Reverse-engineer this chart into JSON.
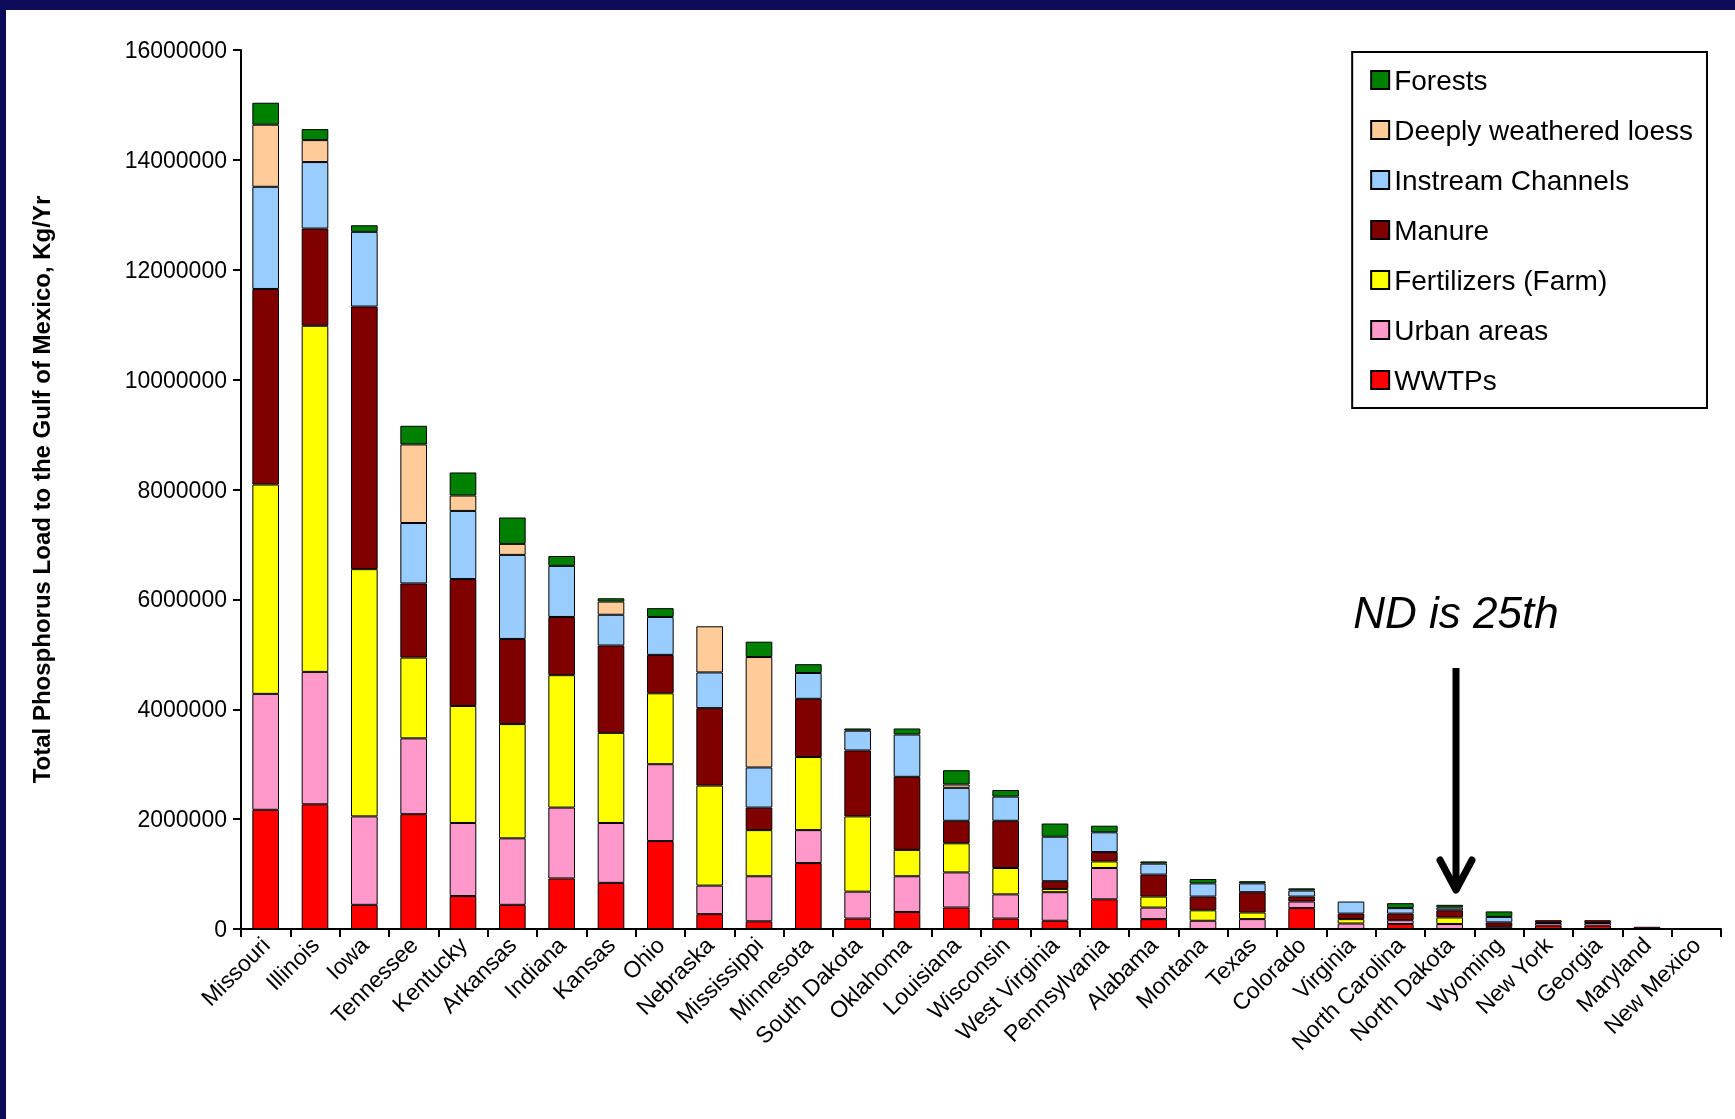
{
  "chart_data": {
    "type": "bar",
    "stacked": true,
    "ylabel": "Total Phosphorus Load to the Gulf of Mexico, Kg/Yr",
    "categories": [
      "Missouri",
      "Illinois",
      "Iowa",
      "Tennessee",
      "Kentucky",
      "Arkansas",
      "Indiana",
      "Kansas",
      "Ohio",
      "Nebraska",
      "Mississippi",
      "Minnesota",
      "South Dakota",
      "Oklahoma",
      "Louisiana",
      "Wisconsin",
      "West Virginia",
      "Pennsylvania",
      "Alabama",
      "Montana",
      "Texas",
      "Colorado",
      "Virginia",
      "North Carolina",
      "North Dakota",
      "Wyoming",
      "New York",
      "Georgia",
      "Maryland",
      "New Mexico"
    ],
    "series": [
      {
        "name": "WWTPs",
        "color": "#ff0000",
        "values": [
          2170000,
          2270000,
          440000,
          2090000,
          600000,
          440000,
          920000,
          840000,
          1600000,
          270000,
          140000,
          1200000,
          190000,
          310000,
          390000,
          190000,
          150000,
          540000,
          180000,
          null,
          null,
          380000,
          null,
          90000,
          null,
          null,
          60000,
          60000,
          40000,
          null
        ]
      },
      {
        "name": "Urban areas",
        "color": "#ff99cc",
        "values": [
          2110000,
          2410000,
          1610000,
          1380000,
          1330000,
          1210000,
          1290000,
          1090000,
          1400000,
          520000,
          820000,
          600000,
          490000,
          650000,
          640000,
          440000,
          520000,
          570000,
          210000,
          150000,
          180000,
          120000,
          100000,
          70000,
          90000,
          40000,
          50000,
          50000,
          null,
          null
        ]
      },
      {
        "name": "Fertilizers (Farm)",
        "color": "#ffff00",
        "values": [
          3810000,
          6300000,
          4500000,
          1470000,
          2130000,
          2080000,
          2410000,
          1640000,
          1290000,
          1820000,
          840000,
          1330000,
          1370000,
          480000,
          530000,
          480000,
          60000,
          120000,
          200000,
          190000,
          120000,
          null,
          80000,
          null,
          120000,
          null,
          null,
          null,
          null,
          null
        ]
      },
      {
        "name": "Manure",
        "color": "#800000",
        "values": [
          3560000,
          1770000,
          4780000,
          1350000,
          2310000,
          1550000,
          1060000,
          1590000,
          700000,
          1410000,
          410000,
          1060000,
          1200000,
          1330000,
          410000,
          860000,
          140000,
          170000,
          400000,
          250000,
          370000,
          90000,
          100000,
          120000,
          130000,
          80000,
          50000,
          50000,
          null,
          null
        ]
      },
      {
        "name": "Instream Channels",
        "color": "#99ccff",
        "values": [
          1860000,
          1210000,
          1360000,
          1100000,
          1240000,
          1530000,
          930000,
          560000,
          690000,
          650000,
          730000,
          470000,
          360000,
          770000,
          600000,
          440000,
          810000,
          360000,
          200000,
          240000,
          160000,
          110000,
          220000,
          100000,
          50000,
          100000,
          null,
          null,
          null,
          null
        ]
      },
      {
        "name": "Deeply weathered loess",
        "color": "#ffcc99",
        "values": [
          1130000,
          400000,
          null,
          1430000,
          280000,
          200000,
          null,
          240000,
          null,
          840000,
          2010000,
          null,
          null,
          null,
          60000,
          null,
          null,
          null,
          null,
          null,
          null,
          null,
          null,
          null,
          null,
          null,
          null,
          null,
          null,
          null
        ]
      },
      {
        "name": "Forests",
        "color": "#008000",
        "values": [
          400000,
          200000,
          120000,
          340000,
          420000,
          480000,
          180000,
          60000,
          160000,
          null,
          280000,
          160000,
          40000,
          110000,
          260000,
          120000,
          240000,
          120000,
          40000,
          80000,
          40000,
          40000,
          null,
          90000,
          50000,
          100000,
          null,
          null,
          null,
          null
        ]
      }
    ],
    "ylim": [
      0,
      16000000
    ],
    "yticks": [
      0,
      2000000,
      4000000,
      6000000,
      8000000,
      10000000,
      12000000,
      14000000,
      16000000
    ],
    "grid": false,
    "legend": "top right",
    "annotations": [
      "ND is 25th"
    ]
  }
}
